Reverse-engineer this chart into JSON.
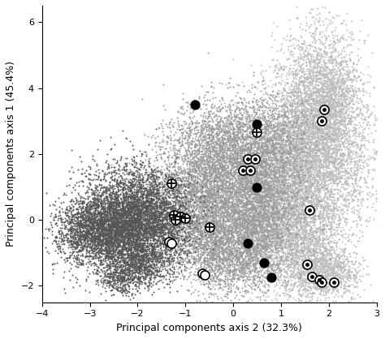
{
  "xlabel": "Principal components axis 2 (32.3%)",
  "ylabel": "Principal components axis 1 (45.4%)",
  "xlim": [
    -4,
    3
  ],
  "ylim": [
    -2.5,
    6.5
  ],
  "xticks": [
    -4,
    -3,
    -2,
    -1,
    0,
    1,
    2,
    3
  ],
  "yticks": [
    -2,
    0,
    2,
    4,
    6
  ],
  "background_color": "#ffffff",
  "dark_gray": "#555555",
  "medium_gray": "#999999",
  "light_gray": "#bbbbbb",
  "scatter_size": 2.0,
  "scatter_alpha": 1.0,
  "seed": 12345,
  "black_dots": [
    [
      -0.8,
      3.5
    ],
    [
      0.5,
      2.9
    ],
    [
      0.5,
      1.0
    ],
    [
      0.3,
      -0.7
    ],
    [
      0.65,
      -1.3
    ],
    [
      0.8,
      -1.75
    ]
  ],
  "circle_dots": [
    [
      1.9,
      3.35
    ],
    [
      1.85,
      3.0
    ],
    [
      0.3,
      1.85
    ],
    [
      0.45,
      1.85
    ],
    [
      0.2,
      1.5
    ],
    [
      0.35,
      1.5
    ],
    [
      1.6,
      0.3
    ],
    [
      1.55,
      -1.35
    ],
    [
      1.65,
      -1.72
    ],
    [
      1.8,
      -1.82
    ],
    [
      1.85,
      -1.88
    ],
    [
      2.1,
      -1.88
    ]
  ],
  "cross_dots": [
    [
      -1.25,
      0.15
    ],
    [
      -1.1,
      0.1
    ],
    [
      -1.2,
      0.0
    ],
    [
      -1.0,
      0.05
    ],
    [
      -1.3,
      1.1
    ],
    [
      0.5,
      2.65
    ],
    [
      -0.5,
      -0.22
    ]
  ],
  "white_dots": [
    [
      -1.35,
      -0.65
    ],
    [
      -1.3,
      -0.7
    ],
    [
      -0.65,
      -1.62
    ],
    [
      -0.6,
      -1.67
    ]
  ],
  "marker_size": 8
}
